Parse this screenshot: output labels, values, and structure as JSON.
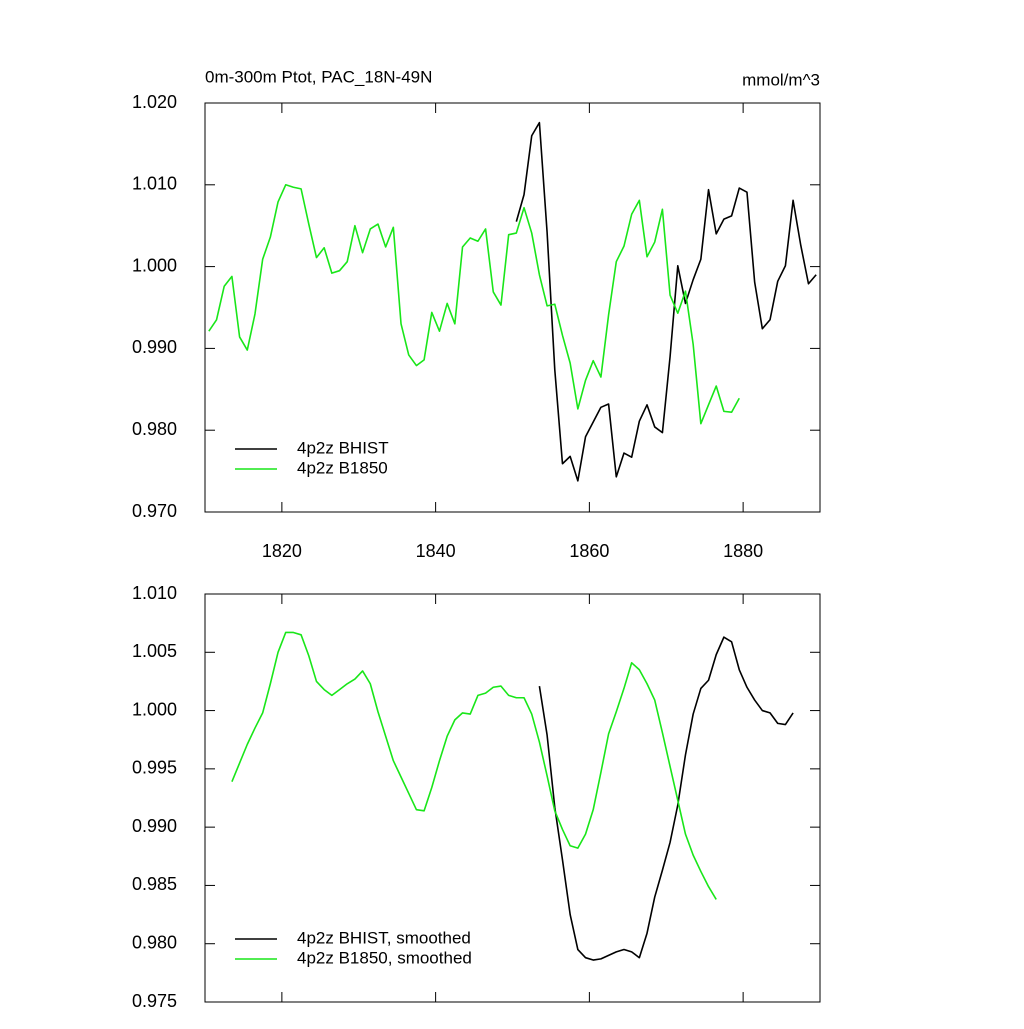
{
  "chart_data": [
    {
      "type": "line",
      "title": "0m-300m Ptot, PAC_18N-49N",
      "units": "mmol/m^3",
      "xlim": [
        1810,
        1890
      ],
      "xticks": [
        1820,
        1840,
        1860,
        1880
      ],
      "xtick_labels": true,
      "ylim": [
        0.97,
        1.02
      ],
      "yticks": [
        {
          "value": 0.97,
          "label": "0.970"
        },
        {
          "value": 0.98,
          "label": "0.980"
        },
        {
          "value": 0.99,
          "label": "0.990"
        },
        {
          "value": 1.0,
          "label": "1.000"
        },
        {
          "value": 1.01,
          "label": "1.010"
        },
        {
          "value": 1.02,
          "label": "1.020"
        }
      ],
      "legend": "lower left",
      "series": [
        {
          "name": "4p2z BHIST",
          "color": "#000000",
          "x": [
            1850.5,
            1851.5,
            1852.5,
            1853.5,
            1854.5,
            1855.5,
            1856.5,
            1857.5,
            1858.5,
            1859.5,
            1860.5,
            1861.5,
            1862.5,
            1863.5,
            1864.5,
            1865.5,
            1866.5,
            1867.5,
            1868.5,
            1869.5,
            1870.5,
            1871.5,
            1872.5,
            1873.5,
            1874.5,
            1875.5,
            1876.5,
            1877.5,
            1878.5,
            1879.5,
            1880.5,
            1881.5,
            1882.5,
            1883.5,
            1884.5,
            1885.5,
            1886.5,
            1887.5,
            1888.5,
            1889.5
          ],
          "values": [
            1.0055,
            1.0088,
            1.016,
            1.0176,
            1.0042,
            0.9874,
            0.9759,
            0.9768,
            0.9738,
            0.9792,
            0.981,
            0.9828,
            0.9832,
            0.9743,
            0.9772,
            0.9767,
            0.9811,
            0.9831,
            0.9804,
            0.9797,
            0.989,
            1.0001,
            0.9955,
            0.9984,
            1.0009,
            1.0094,
            1.004,
            1.0058,
            1.0062,
            1.0096,
            1.0091,
            0.9981,
            0.9924,
            0.9935,
            0.9982,
            1.0001,
            1.0081,
            1.0026,
            0.9979,
            0.999
          ]
        },
        {
          "name": "4p2z B1850",
          "color": "#19e619",
          "x": [
            1810.5,
            1811.5,
            1812.5,
            1813.5,
            1814.5,
            1815.5,
            1816.5,
            1817.5,
            1818.5,
            1819.5,
            1820.5,
            1821.5,
            1822.5,
            1823.5,
            1824.5,
            1825.5,
            1826.5,
            1827.5,
            1828.5,
            1829.5,
            1830.5,
            1831.5,
            1832.5,
            1833.5,
            1834.5,
            1835.5,
            1836.5,
            1837.5,
            1838.5,
            1839.5,
            1840.5,
            1841.5,
            1842.5,
            1843.5,
            1844.5,
            1845.5,
            1846.5,
            1847.5,
            1848.5,
            1849.5,
            1850.5,
            1851.5,
            1852.5,
            1853.5,
            1854.5,
            1855.5,
            1856.5,
            1857.5,
            1858.5,
            1859.5,
            1860.5,
            1861.5,
            1862.5,
            1863.5,
            1864.5,
            1865.5,
            1866.5,
            1867.5,
            1868.5,
            1869.5,
            1870.5,
            1871.5,
            1872.5,
            1873.5,
            1874.5,
            1875.5,
            1876.5,
            1877.5,
            1878.5,
            1879.5
          ],
          "values": [
            0.9921,
            0.9935,
            0.9976,
            0.9988,
            0.9914,
            0.9898,
            0.9942,
            1.0009,
            1.0036,
            1.0079,
            1.01,
            1.0097,
            1.0095,
            1.0052,
            1.0011,
            1.0023,
            0.9992,
            0.9995,
            1.0006,
            1.005,
            1.0017,
            1.0046,
            1.0052,
            1.0024,
            1.0048,
            0.993,
            0.9892,
            0.9879,
            0.9886,
            0.9944,
            0.9921,
            0.9955,
            0.993,
            1.0024,
            1.0035,
            1.0031,
            1.0046,
            0.9969,
            0.9953,
            1.0039,
            1.0041,
            1.0072,
            1.0041,
            0.999,
            0.9952,
            0.9954,
            0.9916,
            0.9882,
            0.9826,
            0.9861,
            0.9885,
            0.9865,
            0.9941,
            1.0006,
            1.0025,
            1.0064,
            1.0081,
            1.0012,
            1.003,
            1.007,
            0.9965,
            0.9943,
            0.997,
            0.9905,
            0.9808,
            0.9831,
            0.9854,
            0.9823,
            0.9822,
            0.9839
          ]
        }
      ]
    },
    {
      "type": "line",
      "xlim": [
        1810,
        1890
      ],
      "xticks": [
        1820,
        1840,
        1860,
        1880
      ],
      "xtick_labels": false,
      "ylim": [
        0.975,
        1.01
      ],
      "yticks": [
        {
          "value": 0.975,
          "label": "0.975"
        },
        {
          "value": 0.98,
          "label": "0.980"
        },
        {
          "value": 0.985,
          "label": "0.985"
        },
        {
          "value": 0.99,
          "label": "0.990"
        },
        {
          "value": 0.995,
          "label": "0.995"
        },
        {
          "value": 1.0,
          "label": "1.000"
        },
        {
          "value": 1.005,
          "label": "1.005"
        },
        {
          "value": 1.01,
          "label": "1.010"
        }
      ],
      "legend": "lower left",
      "series": [
        {
          "name": "4p2z BHIST, smoothed",
          "color": "#000000",
          "x": [
            1853.5,
            1854.5,
            1855.5,
            1856.5,
            1857.5,
            1858.5,
            1859.5,
            1860.5,
            1861.5,
            1862.5,
            1863.5,
            1864.5,
            1865.5,
            1866.5,
            1867.5,
            1868.5,
            1869.5,
            1870.5,
            1871.5,
            1872.5,
            1873.5,
            1874.5,
            1875.5,
            1876.5,
            1877.5,
            1878.5,
            1879.5,
            1880.5,
            1881.5,
            1882.5,
            1883.5,
            1884.5,
            1885.5,
            1886.5
          ],
          "values": [
            1.0021,
            0.9979,
            0.9917,
            0.9872,
            0.9825,
            0.9795,
            0.9788,
            0.9786,
            0.9787,
            0.979,
            0.9793,
            0.9795,
            0.9793,
            0.9788,
            0.9809,
            0.984,
            0.9863,
            0.9887,
            0.9919,
            0.9962,
            0.9997,
            1.0019,
            1.0026,
            1.0048,
            1.0063,
            1.0059,
            1.0035,
            1.002,
            1.0009,
            1.0,
            0.9998,
            0.9989,
            0.9988,
            0.9998
          ]
        },
        {
          "name": "4p2z B1850, smoothed",
          "color": "#19e619",
          "x": [
            1813.5,
            1814.5,
            1815.5,
            1816.5,
            1817.5,
            1818.5,
            1819.5,
            1820.5,
            1821.5,
            1822.5,
            1823.5,
            1824.5,
            1825.5,
            1826.5,
            1827.5,
            1828.5,
            1829.5,
            1830.5,
            1831.5,
            1832.5,
            1833.5,
            1834.5,
            1835.5,
            1836.5,
            1837.5,
            1838.5,
            1839.5,
            1840.5,
            1841.5,
            1842.5,
            1843.5,
            1844.5,
            1845.5,
            1846.5,
            1847.5,
            1848.5,
            1849.5,
            1850.5,
            1851.5,
            1852.5,
            1853.5,
            1854.5,
            1855.5,
            1856.5,
            1857.5,
            1858.5,
            1859.5,
            1860.5,
            1861.5,
            1862.5,
            1863.5,
            1864.5,
            1865.5,
            1866.5,
            1867.5,
            1868.5,
            1869.5,
            1870.5,
            1871.5,
            1872.5,
            1873.5,
            1874.5,
            1875.5,
            1876.5
          ],
          "values": [
            0.9939,
            0.9955,
            0.9971,
            0.9985,
            0.9998,
            1.0023,
            1.005,
            1.0067,
            1.0067,
            1.0065,
            1.0047,
            1.0025,
            1.0018,
            1.0013,
            1.0018,
            1.0023,
            1.0027,
            1.0034,
            1.0023,
            0.9999,
            0.9978,
            0.9957,
            0.9943,
            0.9929,
            0.9915,
            0.9914,
            0.9934,
            0.9957,
            0.9978,
            0.9992,
            0.9998,
            0.9997,
            1.0013,
            1.0015,
            1.002,
            1.0021,
            1.0013,
            1.0011,
            1.0011,
            0.9997,
            0.9973,
            0.9944,
            0.9914,
            0.9898,
            0.9884,
            0.9882,
            0.9894,
            0.9915,
            0.9947,
            0.998,
            0.9999,
            1.0019,
            1.0041,
            1.0035,
            1.0023,
            1.0009,
            0.9981,
            0.9952,
            0.9923,
            0.9894,
            0.9876,
            0.9862,
            0.9849,
            0.9838
          ]
        }
      ]
    }
  ]
}
